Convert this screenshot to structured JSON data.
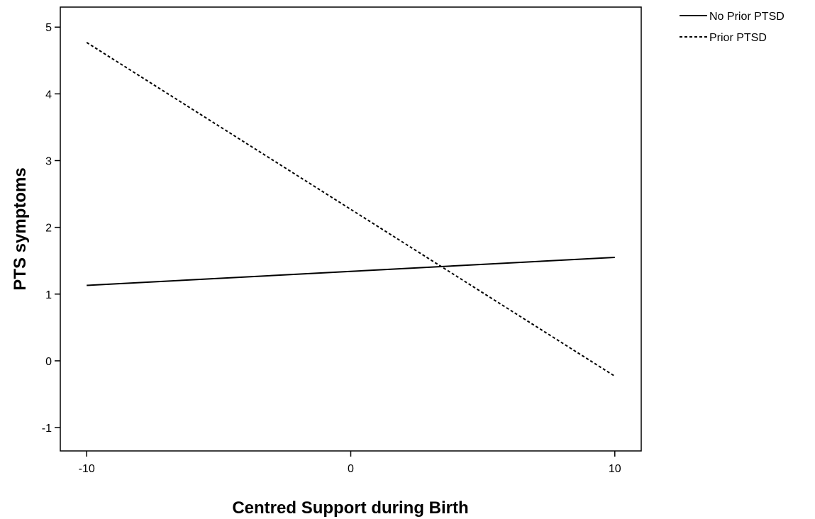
{
  "chart_data": {
    "type": "line",
    "title": "",
    "xlabel": "Centred Support during Birth",
    "ylabel": "PTS symptoms",
    "xlim": [
      -11,
      11
    ],
    "ylim": [
      -1.35,
      5.3
    ],
    "x_ticks": [
      -10,
      0,
      10
    ],
    "x_tick_labels": [
      "-10",
      "0",
      "10"
    ],
    "y_ticks": [
      -1,
      0,
      1,
      2,
      3,
      4,
      5
    ],
    "y_tick_labels": [
      "-1",
      "0",
      "1",
      "2",
      "3",
      "4",
      "5"
    ],
    "grid": false,
    "legend_position": "outside top-right",
    "series": [
      {
        "name": "No Prior PTSD",
        "line_style": "solid",
        "color": "#000000",
        "x": [
          -10,
          10
        ],
        "y": [
          1.13,
          1.55
        ]
      },
      {
        "name": "Prior PTSD",
        "line_style": "dashed",
        "color": "#000000",
        "x": [
          -10,
          10
        ],
        "y": [
          4.77,
          -0.23
        ]
      }
    ]
  }
}
